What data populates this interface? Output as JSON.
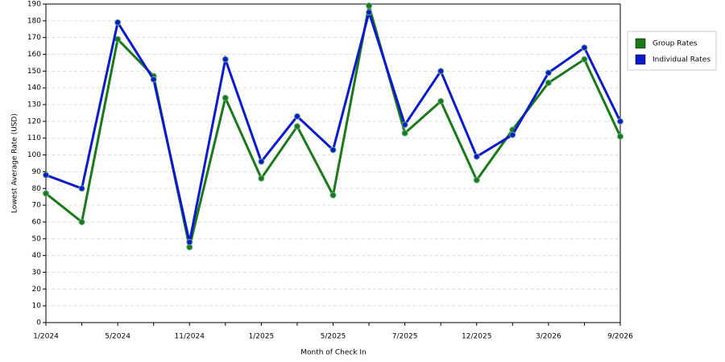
{
  "chart_data": {
    "type": "line",
    "x_label": "Month of Check In",
    "y_label": "Lowest Average Rate (USD)",
    "categories": [
      "1/2024",
      null,
      "5/2024",
      null,
      "11/2024",
      null,
      "1/2025",
      null,
      "5/2025",
      null,
      "7/2025",
      null,
      "12/2025",
      null,
      "3/2026",
      null,
      "9/2026"
    ],
    "series": [
      {
        "name": "Group Rates",
        "color": "#1a7a1a",
        "values": [
          77,
          60,
          169,
          147,
          45,
          134,
          86,
          117,
          76,
          189,
          113,
          132,
          85,
          115,
          143,
          157,
          111
        ]
      },
      {
        "name": "Individual Rates",
        "color": "#0a1acc",
        "values": [
          88,
          80,
          179,
          145,
          48,
          157,
          96,
          123,
          103,
          185,
          118,
          150,
          99,
          112,
          149,
          164,
          120
        ]
      }
    ],
    "ylim": [
      0,
      190
    ],
    "yticks": [
      0,
      10,
      20,
      30,
      40,
      50,
      60,
      70,
      80,
      90,
      100,
      110,
      120,
      130,
      140,
      150,
      160,
      170,
      180,
      190
    ],
    "grid": true,
    "legend": "right"
  }
}
